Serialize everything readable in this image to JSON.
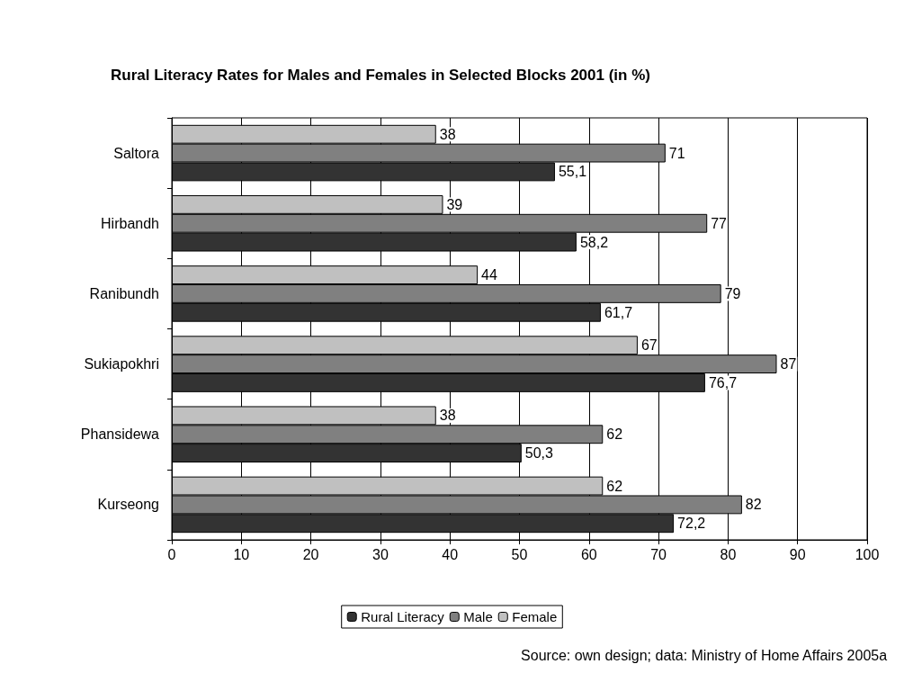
{
  "chart_data": {
    "type": "bar",
    "orientation": "horizontal",
    "title": "Rural Literacy Rates for Males and Females in Selected Blocks 2001 (in %)",
    "categories": [
      "Saltora",
      "Hirbandh",
      "Ranibundh",
      "Sukiapokhri",
      "Phansidewa",
      "Kurseong"
    ],
    "series": [
      {
        "name": "Rural Literacy",
        "color": "#333333",
        "values": [
          55.1,
          58.2,
          61.7,
          76.7,
          50.3,
          72.2
        ],
        "value_labels": [
          "55,1",
          "58,2",
          "61,7",
          "76,7",
          "50,3",
          "72,2"
        ]
      },
      {
        "name": "Male",
        "color": "#808080",
        "values": [
          71,
          77,
          79,
          87,
          62,
          82
        ],
        "value_labels": [
          "71",
          "77",
          "79",
          "87",
          "62",
          "82"
        ]
      },
      {
        "name": "Female",
        "color": "#c0c0c0",
        "values": [
          38,
          39,
          44,
          67,
          38,
          62
        ],
        "value_labels": [
          "38",
          "39",
          "44",
          "67",
          "38",
          "62"
        ]
      }
    ],
    "xlim": [
      0,
      100
    ],
    "xticks": [
      0,
      10,
      20,
      30,
      40,
      50,
      60,
      70,
      80,
      90,
      100
    ],
    "grid": "x",
    "legend": "bottom",
    "annotations": [
      "Source: own design; data: Ministry of Home Affairs 2005a"
    ]
  }
}
